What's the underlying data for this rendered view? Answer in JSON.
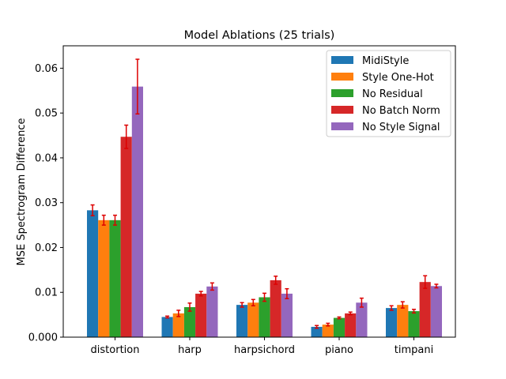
{
  "chart_data": {
    "type": "bar",
    "title": "Model Ablations (25 trials)",
    "xlabel": "",
    "ylabel": "MSE Spectrogram Difference",
    "ylim": [
      0,
      0.065
    ],
    "yticks": [
      "0.000",
      "0.01",
      "0.02",
      "0.03",
      "0.04",
      "0.05",
      "0.06"
    ],
    "ytick_values": [
      0,
      0.01,
      0.02,
      0.03,
      0.04,
      0.05,
      0.06
    ],
    "categories": [
      "distortion",
      "harp",
      "harpsichord",
      "piano",
      "timpani"
    ],
    "legend_position": "top-right",
    "grid": false,
    "error_color": "#dd0000",
    "series": [
      {
        "name": "MidiStyle",
        "color": "#1f77b4",
        "values": [
          0.0283,
          0.0045,
          0.0072,
          0.0023,
          0.0065
        ],
        "errors": [
          0.0012,
          0.0002,
          0.0005,
          0.0003,
          0.0005
        ]
      },
      {
        "name": "Style One-Hot",
        "color": "#ff7f0e",
        "values": [
          0.0261,
          0.0053,
          0.0077,
          0.0028,
          0.0072
        ],
        "errors": [
          0.0011,
          0.0007,
          0.0007,
          0.0003,
          0.0007
        ]
      },
      {
        "name": "No Residual",
        "color": "#2ca02c",
        "values": [
          0.0261,
          0.0067,
          0.0089,
          0.0043,
          0.0058
        ],
        "errors": [
          0.0011,
          0.0009,
          0.0009,
          0.0002,
          0.0004
        ]
      },
      {
        "name": "No Batch Norm",
        "color": "#d62728",
        "values": [
          0.0447,
          0.0097,
          0.0127,
          0.0053,
          0.0123
        ],
        "errors": [
          0.0026,
          0.0005,
          0.0009,
          0.0003,
          0.0014
        ]
      },
      {
        "name": "No Style Signal",
        "color": "#9467bd",
        "values": [
          0.0559,
          0.0113,
          0.0097,
          0.0077,
          0.0114
        ],
        "errors": [
          0.0061,
          0.0008,
          0.0011,
          0.001,
          0.0004
        ]
      }
    ]
  }
}
